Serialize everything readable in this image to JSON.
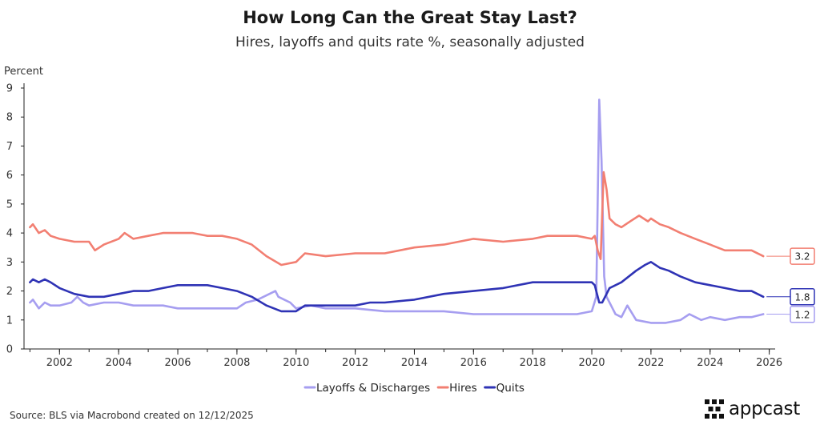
{
  "header": {
    "title": "How Long Can the Great Stay Last?",
    "subtitle": "Hires, layoffs and quits rate %, seasonally adjusted"
  },
  "footer": {
    "source": "Source: BLS via Macrobond created on 12/12/2025"
  },
  "brand": {
    "name": "appcast",
    "logo_icon": "dot-grid-logo-icon"
  },
  "chart_data": {
    "type": "line",
    "title": "How Long Can the Great Stay Last?",
    "subtitle": "Hires, layoffs and quits rate %, seasonally adjusted",
    "ylabel": "Percent",
    "xlabel": "",
    "xlim": [
      2000.8,
      2026.2
    ],
    "ylim": [
      0,
      9
    ],
    "x_ticks": [
      2002,
      2004,
      2006,
      2008,
      2010,
      2012,
      2014,
      2016,
      2018,
      2020,
      2022,
      2024,
      2026
    ],
    "x_tick_labels": [
      "2002",
      "2004",
      "2006",
      "2008",
      "2010",
      "2012",
      "2014",
      "2016",
      "2018",
      "2020",
      "2022",
      "2024",
      "2026"
    ],
    "y_ticks": [
      0,
      1,
      2,
      3,
      4,
      5,
      6,
      7,
      8,
      9
    ],
    "y_tick_labels": [
      "0",
      "1",
      "2",
      "3",
      "4",
      "5",
      "6",
      "7",
      "8",
      "9"
    ],
    "grid": false,
    "legend_position": "bottom-center",
    "series": [
      {
        "name": "Layoffs & Discharges",
        "color": "#a69ef0",
        "end_label": "1.2",
        "points": [
          [
            2001.0,
            1.6
          ],
          [
            2001.1,
            1.7
          ],
          [
            2001.3,
            1.4
          ],
          [
            2001.5,
            1.6
          ],
          [
            2001.7,
            1.5
          ],
          [
            2002.0,
            1.5
          ],
          [
            2002.4,
            1.6
          ],
          [
            2002.6,
            1.8
          ],
          [
            2002.8,
            1.6
          ],
          [
            2003.0,
            1.5
          ],
          [
            2003.5,
            1.6
          ],
          [
            2004.0,
            1.6
          ],
          [
            2004.5,
            1.5
          ],
          [
            2005.0,
            1.5
          ],
          [
            2005.5,
            1.5
          ],
          [
            2006.0,
            1.4
          ],
          [
            2006.5,
            1.4
          ],
          [
            2007.0,
            1.4
          ],
          [
            2007.5,
            1.4
          ],
          [
            2008.0,
            1.4
          ],
          [
            2008.3,
            1.6
          ],
          [
            2008.7,
            1.7
          ],
          [
            2008.9,
            1.8
          ],
          [
            2009.1,
            1.9
          ],
          [
            2009.3,
            2.0
          ],
          [
            2009.4,
            1.8
          ],
          [
            2009.6,
            1.7
          ],
          [
            2009.8,
            1.6
          ],
          [
            2010.0,
            1.4
          ],
          [
            2010.5,
            1.5
          ],
          [
            2011.0,
            1.4
          ],
          [
            2012.0,
            1.4
          ],
          [
            2013.0,
            1.3
          ],
          [
            2014.0,
            1.3
          ],
          [
            2015.0,
            1.3
          ],
          [
            2016.0,
            1.2
          ],
          [
            2017.0,
            1.2
          ],
          [
            2018.0,
            1.2
          ],
          [
            2019.0,
            1.2
          ],
          [
            2019.5,
            1.2
          ],
          [
            2020.0,
            1.3
          ],
          [
            2020.15,
            1.8
          ],
          [
            2020.25,
            8.6
          ],
          [
            2020.33,
            6.5
          ],
          [
            2020.42,
            2.5
          ],
          [
            2020.5,
            1.8
          ],
          [
            2020.6,
            1.6
          ],
          [
            2020.8,
            1.2
          ],
          [
            2021.0,
            1.1
          ],
          [
            2021.2,
            1.5
          ],
          [
            2021.5,
            1.0
          ],
          [
            2022.0,
            0.9
          ],
          [
            2022.5,
            0.9
          ],
          [
            2023.0,
            1.0
          ],
          [
            2023.3,
            1.2
          ],
          [
            2023.7,
            1.0
          ],
          [
            2024.0,
            1.1
          ],
          [
            2024.5,
            1.0
          ],
          [
            2025.0,
            1.1
          ],
          [
            2025.4,
            1.1
          ],
          [
            2025.8,
            1.2
          ]
        ]
      },
      {
        "name": "Hires",
        "color": "#f27f72",
        "end_label": "3.2",
        "points": [
          [
            2001.0,
            4.2
          ],
          [
            2001.1,
            4.3
          ],
          [
            2001.3,
            4.0
          ],
          [
            2001.5,
            4.1
          ],
          [
            2001.7,
            3.9
          ],
          [
            2002.0,
            3.8
          ],
          [
            2002.5,
            3.7
          ],
          [
            2003.0,
            3.7
          ],
          [
            2003.2,
            3.4
          ],
          [
            2003.5,
            3.6
          ],
          [
            2004.0,
            3.8
          ],
          [
            2004.2,
            4.0
          ],
          [
            2004.5,
            3.8
          ],
          [
            2005.0,
            3.9
          ],
          [
            2005.5,
            4.0
          ],
          [
            2006.0,
            4.0
          ],
          [
            2006.5,
            4.0
          ],
          [
            2007.0,
            3.9
          ],
          [
            2007.5,
            3.9
          ],
          [
            2008.0,
            3.8
          ],
          [
            2008.5,
            3.6
          ],
          [
            2009.0,
            3.2
          ],
          [
            2009.5,
            2.9
          ],
          [
            2010.0,
            3.0
          ],
          [
            2010.3,
            3.3
          ],
          [
            2011.0,
            3.2
          ],
          [
            2012.0,
            3.3
          ],
          [
            2013.0,
            3.3
          ],
          [
            2014.0,
            3.5
          ],
          [
            2015.0,
            3.6
          ],
          [
            2016.0,
            3.8
          ],
          [
            2017.0,
            3.7
          ],
          [
            2018.0,
            3.8
          ],
          [
            2018.5,
            3.9
          ],
          [
            2019.0,
            3.9
          ],
          [
            2019.5,
            3.9
          ],
          [
            2020.0,
            3.8
          ],
          [
            2020.1,
            3.9
          ],
          [
            2020.2,
            3.4
          ],
          [
            2020.3,
            3.1
          ],
          [
            2020.4,
            6.1
          ],
          [
            2020.5,
            5.5
          ],
          [
            2020.6,
            4.5
          ],
          [
            2020.8,
            4.3
          ],
          [
            2021.0,
            4.2
          ],
          [
            2021.3,
            4.4
          ],
          [
            2021.6,
            4.6
          ],
          [
            2021.9,
            4.4
          ],
          [
            2022.0,
            4.5
          ],
          [
            2022.3,
            4.3
          ],
          [
            2022.6,
            4.2
          ],
          [
            2023.0,
            4.0
          ],
          [
            2023.5,
            3.8
          ],
          [
            2024.0,
            3.6
          ],
          [
            2024.5,
            3.4
          ],
          [
            2025.0,
            3.4
          ],
          [
            2025.4,
            3.4
          ],
          [
            2025.8,
            3.2
          ]
        ]
      },
      {
        "name": "Quits",
        "color": "#2f33b5",
        "end_label": "1.8",
        "points": [
          [
            2001.0,
            2.3
          ],
          [
            2001.1,
            2.4
          ],
          [
            2001.3,
            2.3
          ],
          [
            2001.5,
            2.4
          ],
          [
            2001.7,
            2.3
          ],
          [
            2002.0,
            2.1
          ],
          [
            2002.5,
            1.9
          ],
          [
            2003.0,
            1.8
          ],
          [
            2003.5,
            1.8
          ],
          [
            2004.0,
            1.9
          ],
          [
            2004.5,
            2.0
          ],
          [
            2005.0,
            2.0
          ],
          [
            2005.5,
            2.1
          ],
          [
            2006.0,
            2.2
          ],
          [
            2006.5,
            2.2
          ],
          [
            2007.0,
            2.2
          ],
          [
            2007.5,
            2.1
          ],
          [
            2008.0,
            2.0
          ],
          [
            2008.5,
            1.8
          ],
          [
            2009.0,
            1.5
          ],
          [
            2009.5,
            1.3
          ],
          [
            2010.0,
            1.3
          ],
          [
            2010.3,
            1.5
          ],
          [
            2011.0,
            1.5
          ],
          [
            2012.0,
            1.5
          ],
          [
            2012.5,
            1.6
          ],
          [
            2013.0,
            1.6
          ],
          [
            2014.0,
            1.7
          ],
          [
            2015.0,
            1.9
          ],
          [
            2016.0,
            2.0
          ],
          [
            2017.0,
            2.1
          ],
          [
            2018.0,
            2.3
          ],
          [
            2019.0,
            2.3
          ],
          [
            2019.5,
            2.3
          ],
          [
            2020.0,
            2.3
          ],
          [
            2020.1,
            2.2
          ],
          [
            2020.25,
            1.6
          ],
          [
            2020.35,
            1.6
          ],
          [
            2020.6,
            2.1
          ],
          [
            2021.0,
            2.3
          ],
          [
            2021.5,
            2.7
          ],
          [
            2021.8,
            2.9
          ],
          [
            2022.0,
            3.0
          ],
          [
            2022.3,
            2.8
          ],
          [
            2022.6,
            2.7
          ],
          [
            2023.0,
            2.5
          ],
          [
            2023.5,
            2.3
          ],
          [
            2024.0,
            2.2
          ],
          [
            2024.5,
            2.1
          ],
          [
            2025.0,
            2.0
          ],
          [
            2025.4,
            2.0
          ],
          [
            2025.8,
            1.8
          ]
        ]
      }
    ]
  }
}
